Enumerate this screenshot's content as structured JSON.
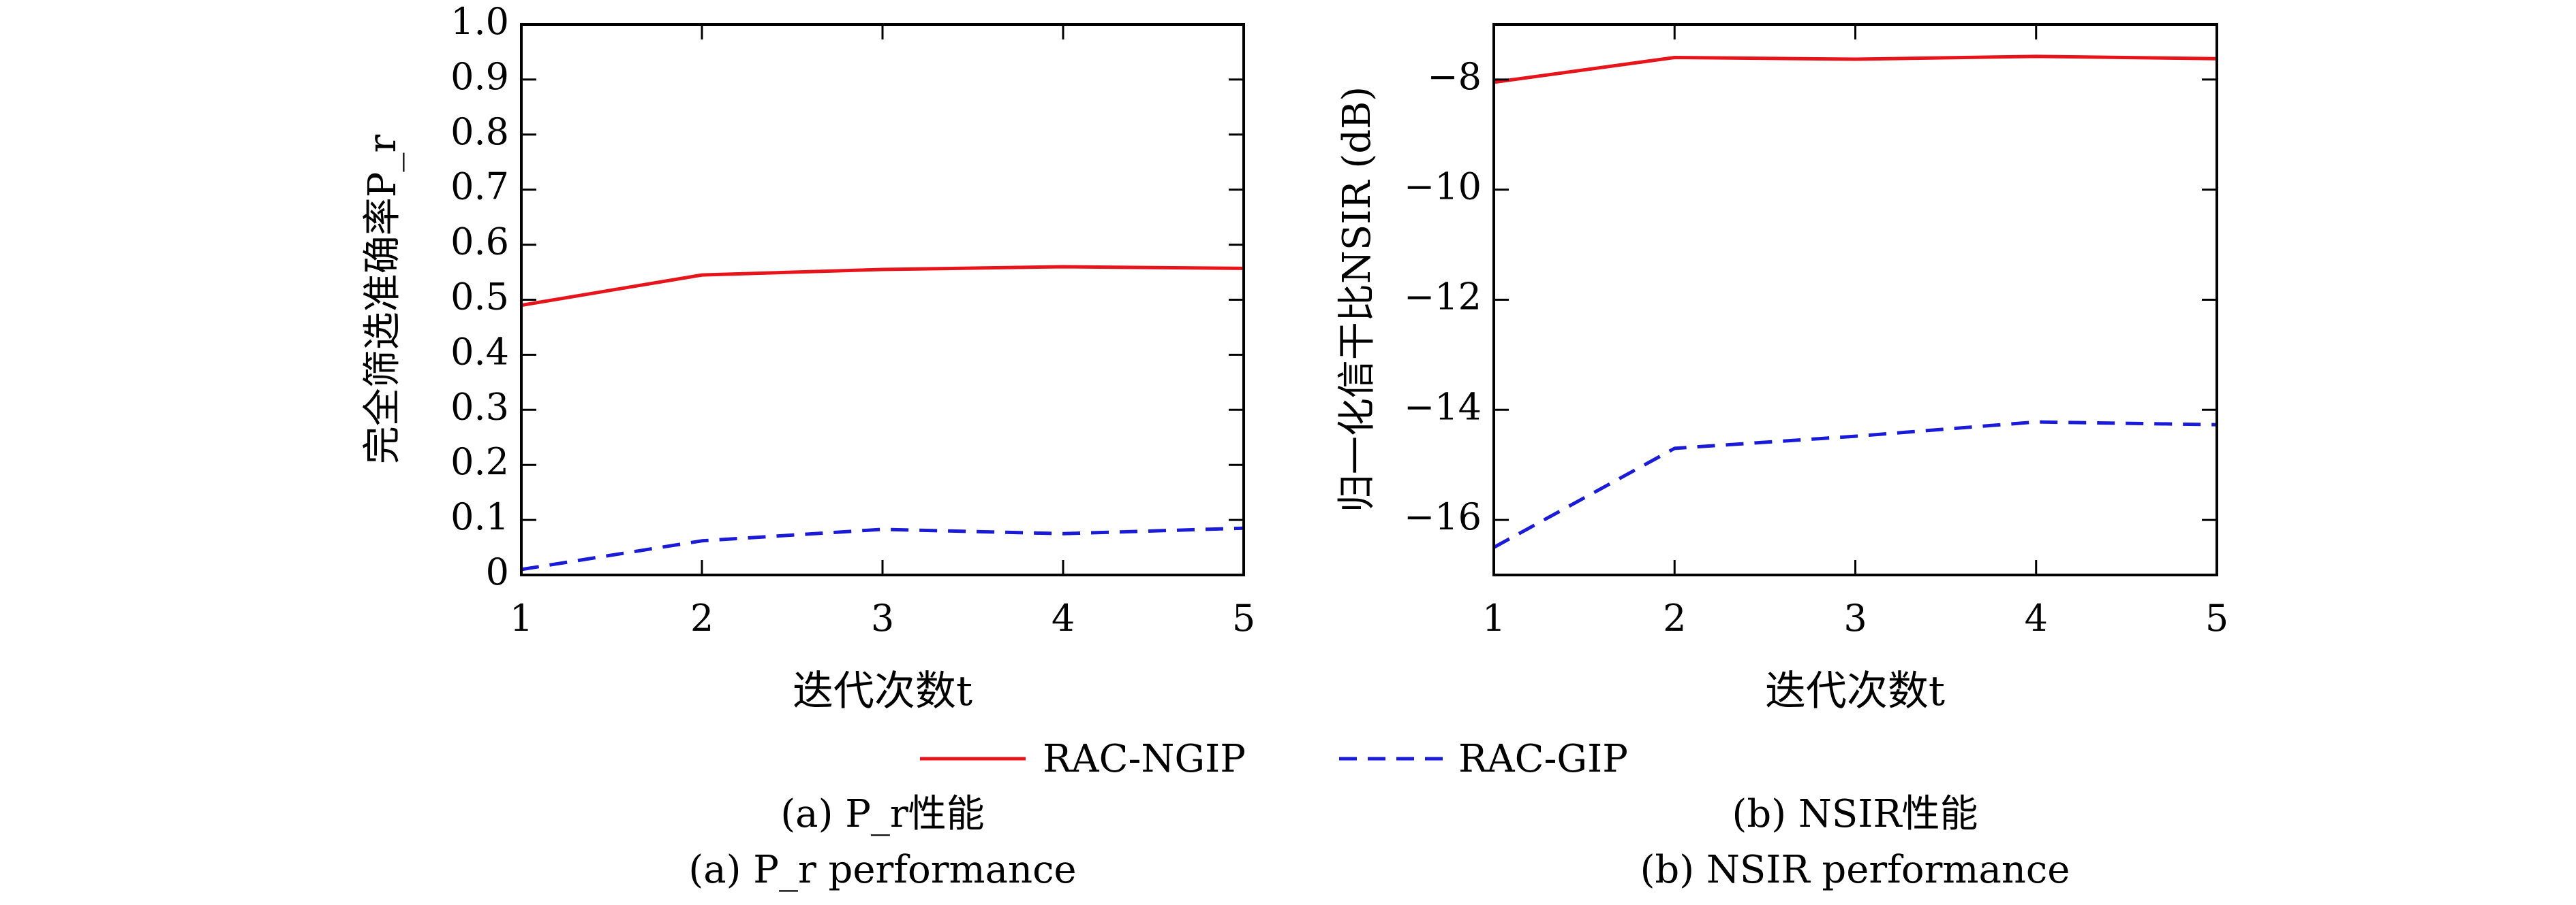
{
  "chart_data": [
    {
      "type": "line",
      "x": [
        1,
        2,
        3,
        4,
        5
      ],
      "xlabel": "迭代次数t",
      "ylabel": "完全筛选准确率P_r",
      "ylim": [
        0,
        1.0
      ],
      "xlim": [
        1,
        5
      ],
      "x_ticks": [
        "1",
        "2",
        "3",
        "4",
        "5"
      ],
      "y_ticks": [
        "0",
        "0.1",
        "0.2",
        "0.3",
        "0.4",
        "0.5",
        "0.6",
        "0.7",
        "0.8",
        "0.9",
        "1.0"
      ],
      "grid": false,
      "series": [
        {
          "name": "RAC-NGIP",
          "color": "#e8141c",
          "style": "solid",
          "values": [
            0.49,
            0.545,
            0.555,
            0.56,
            0.557
          ]
        },
        {
          "name": "RAC-GIP",
          "color": "#1a1ad9",
          "style": "dashed",
          "values": [
            0.01,
            0.062,
            0.083,
            0.075,
            0.085
          ]
        }
      ],
      "caption_cn": "(a) P_r性能",
      "caption_en": "(a) P_r performance"
    },
    {
      "type": "line",
      "x": [
        1,
        2,
        3,
        4,
        5
      ],
      "xlabel": "迭代次数t",
      "ylabel": "归一化信干比NSIR (dB)",
      "ylim": [
        -17,
        -7
      ],
      "xlim": [
        1,
        5
      ],
      "x_ticks": [
        "1",
        "2",
        "3",
        "4",
        "5"
      ],
      "y_ticks": [
        "−16",
        "−14",
        "−12",
        "−10",
        "−8"
      ],
      "grid": false,
      "series": [
        {
          "name": "RAC-NGIP",
          "color": "#e8141c",
          "style": "solid",
          "values": [
            -8.05,
            -7.6,
            -7.63,
            -7.58,
            -7.62
          ]
        },
        {
          "name": "RAC-GIP",
          "color": "#1a1ad9",
          "style": "dashed",
          "values": [
            -16.5,
            -14.7,
            -14.48,
            -14.22,
            -14.27
          ]
        }
      ],
      "caption_cn": "(b) NSIR性能",
      "caption_en": "(b) NSIR performance"
    }
  ],
  "legend": {
    "placement": "bottom-center",
    "entries": [
      "RAC-NGIP",
      "RAC-GIP"
    ]
  }
}
